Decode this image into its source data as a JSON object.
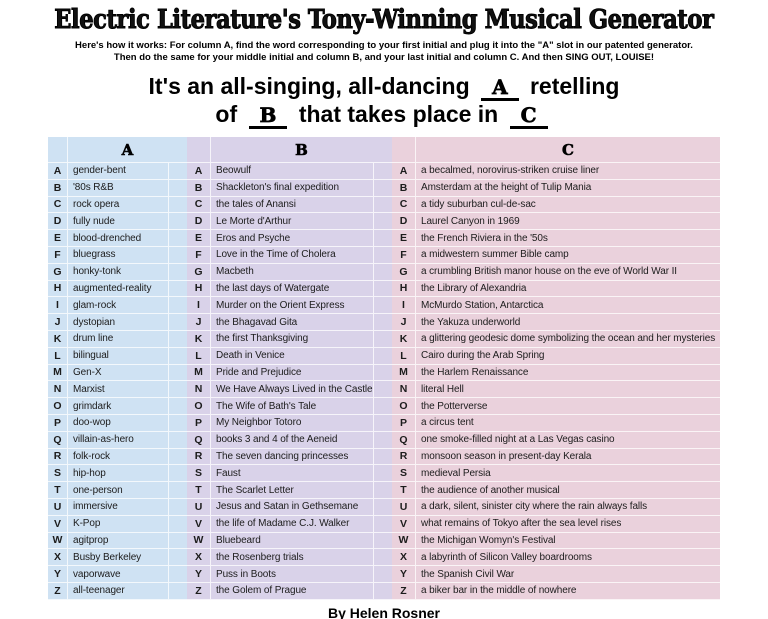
{
  "title": "Electric Literature's Tony-Winning Musical Generator",
  "instructions": {
    "line1": "Here's how it works: For column A, find the word corresponding to your first initial and plug it into the \"A\" slot in our patented generator.",
    "line2": "Then do the same for your middle initial and column B, and your last initial and column C. And then SING OUT, LOUISE!"
  },
  "madlib": {
    "segment1": "It's an all-singing, all-dancing",
    "blank_a": "A",
    "segment2": "retelling",
    "segment3": "of",
    "blank_b": "B",
    "segment4": "that takes place in",
    "blank_c": "C"
  },
  "table": {
    "columns": [
      {
        "header": "A",
        "fill": "#cfe2f3",
        "rows": [
          [
            "A",
            "gender-bent"
          ],
          [
            "B",
            "'80s R&B"
          ],
          [
            "C",
            "rock opera"
          ],
          [
            "D",
            "fully nude"
          ],
          [
            "E",
            "blood-drenched"
          ],
          [
            "F",
            "bluegrass"
          ],
          [
            "G",
            "honky-tonk"
          ],
          [
            "H",
            "augmented-reality"
          ],
          [
            "I",
            "glam-rock"
          ],
          [
            "J",
            "dystopian"
          ],
          [
            "K",
            "drum line"
          ],
          [
            "L",
            "bilingual"
          ],
          [
            "M",
            "Gen-X"
          ],
          [
            "N",
            "Marxist"
          ],
          [
            "O",
            "grimdark"
          ],
          [
            "P",
            "doo-wop"
          ],
          [
            "Q",
            "villain-as-hero"
          ],
          [
            "R",
            "folk-rock"
          ],
          [
            "S",
            "hip-hop"
          ],
          [
            "T",
            "one-person"
          ],
          [
            "U",
            "immersive"
          ],
          [
            "V",
            "K-Pop"
          ],
          [
            "W",
            "agitprop"
          ],
          [
            "X",
            "Busby Berkeley"
          ],
          [
            "Y",
            "vaporwave"
          ],
          [
            "Z",
            "all-teenager"
          ]
        ]
      },
      {
        "header": "B",
        "fill": "#d9d2e9",
        "rows": [
          [
            "A",
            "Beowulf"
          ],
          [
            "B",
            "Shackleton's final expedition"
          ],
          [
            "C",
            "the tales of Anansi"
          ],
          [
            "D",
            "Le Morte d'Arthur"
          ],
          [
            "E",
            "Eros and Psyche"
          ],
          [
            "F",
            "Love in the Time of Cholera"
          ],
          [
            "G",
            "Macbeth"
          ],
          [
            "H",
            "the last days of Watergate"
          ],
          [
            "I",
            "Murder on the Orient Express"
          ],
          [
            "J",
            "the Bhagavad Gita"
          ],
          [
            "K",
            "the first Thanksgiving"
          ],
          [
            "L",
            "Death in Venice"
          ],
          [
            "M",
            "Pride and Prejudice"
          ],
          [
            "N",
            "We Have Always Lived in the Castle"
          ],
          [
            "O",
            "The Wife of Bath's Tale"
          ],
          [
            "P",
            "My Neighbor Totoro"
          ],
          [
            "Q",
            "books 3 and 4 of the Aeneid"
          ],
          [
            "R",
            "The seven dancing princesses"
          ],
          [
            "S",
            "Faust"
          ],
          [
            "T",
            "The Scarlet Letter"
          ],
          [
            "U",
            "Jesus and Satan in Gethsemane"
          ],
          [
            "V",
            "the life of Madame C.J. Walker"
          ],
          [
            "W",
            "Bluebeard"
          ],
          [
            "X",
            "the Rosenberg trials"
          ],
          [
            "Y",
            "Puss in Boots"
          ],
          [
            "Z",
            "the Golem of Prague"
          ]
        ]
      },
      {
        "header": "C",
        "fill": "#ead1dc",
        "rows": [
          [
            "A",
            "a becalmed, norovirus-striken cruise liner"
          ],
          [
            "B",
            "Amsterdam at the height of Tulip Mania"
          ],
          [
            "C",
            "a tidy suburban cul-de-sac"
          ],
          [
            "D",
            "Laurel Canyon in 1969"
          ],
          [
            "E",
            "the French Riviera in the '50s"
          ],
          [
            "F",
            "a midwestern summer Bible camp"
          ],
          [
            "G",
            "a crumbling British manor house on the eve of World War II"
          ],
          [
            "H",
            "the Library of Alexandria"
          ],
          [
            "I",
            "McMurdo Station, Antarctica"
          ],
          [
            "J",
            "the Yakuza underworld"
          ],
          [
            "K",
            "a glittering geodesic dome symbolizing the ocean and her mysteries"
          ],
          [
            "L",
            "Cairo during the Arab Spring"
          ],
          [
            "M",
            "the Harlem Renaissance"
          ],
          [
            "N",
            "literal Hell"
          ],
          [
            "O",
            "the Potterverse"
          ],
          [
            "P",
            "a circus tent"
          ],
          [
            "Q",
            "one smoke-filled night at a Las Vegas casino"
          ],
          [
            "R",
            "monsoon season in present-day Kerala"
          ],
          [
            "S",
            "medieval Persia"
          ],
          [
            "T",
            "the audience of another musical"
          ],
          [
            "U",
            "a dark, silent, sinister city where the rain always falls"
          ],
          [
            "V",
            "what remains of Tokyo after the sea level rises"
          ],
          [
            "W",
            "the Michigan Womyn's Festival"
          ],
          [
            "X",
            "a labyrinth of Silicon Valley boardrooms"
          ],
          [
            "Y",
            "the Spanish Civil War"
          ],
          [
            "Z",
            "a biker bar in the middle of nowhere"
          ]
        ]
      }
    ]
  },
  "footer": "By Helen Rosner"
}
